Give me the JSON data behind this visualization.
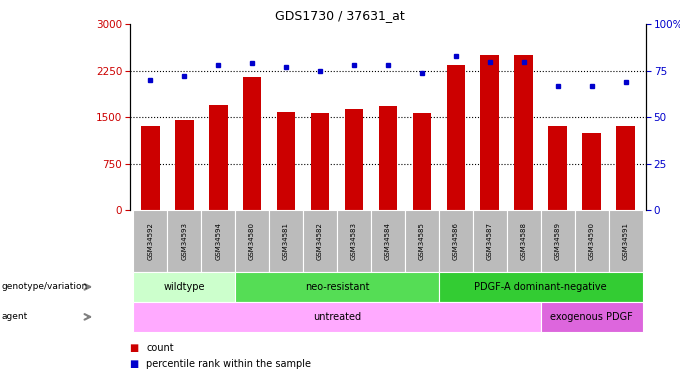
{
  "title": "GDS1730 / 37631_at",
  "samples": [
    "GSM34592",
    "GSM34593",
    "GSM34594",
    "GSM34580",
    "GSM34581",
    "GSM34582",
    "GSM34583",
    "GSM34584",
    "GSM34585",
    "GSM34586",
    "GSM34587",
    "GSM34588",
    "GSM34589",
    "GSM34590",
    "GSM34591"
  ],
  "counts": [
    1350,
    1450,
    1700,
    2150,
    1580,
    1570,
    1640,
    1680,
    1560,
    2350,
    2500,
    2500,
    1350,
    1250,
    1350
  ],
  "percentiles": [
    70,
    72,
    78,
    79,
    77,
    75,
    78,
    78,
    74,
    83,
    80,
    80,
    67,
    67,
    69
  ],
  "ylim_left": [
    0,
    3000
  ],
  "ylim_right": [
    0,
    100
  ],
  "yticks_left": [
    0,
    750,
    1500,
    2250,
    3000
  ],
  "yticks_right": [
    0,
    25,
    50,
    75,
    100
  ],
  "bar_color": "#cc0000",
  "dot_color": "#0000cc",
  "background_color": "#ffffff",
  "genotype_groups": [
    {
      "label": "wildtype",
      "start": 0,
      "end": 3,
      "color": "#ccffcc"
    },
    {
      "label": "neo-resistant",
      "start": 3,
      "end": 9,
      "color": "#55dd55"
    },
    {
      "label": "PDGF-A dominant-negative",
      "start": 9,
      "end": 15,
      "color": "#33cc33"
    }
  ],
  "agent_groups": [
    {
      "label": "untreated",
      "start": 0,
      "end": 12,
      "color": "#ffaaff"
    },
    {
      "label": "exogenous PDGF",
      "start": 12,
      "end": 15,
      "color": "#dd66dd"
    }
  ],
  "tick_bg_color": "#bbbbbb",
  "left_label_color": "#cc0000",
  "right_label_color": "#0000cc",
  "legend_count_color": "#cc0000",
  "legend_dot_color": "#0000cc"
}
